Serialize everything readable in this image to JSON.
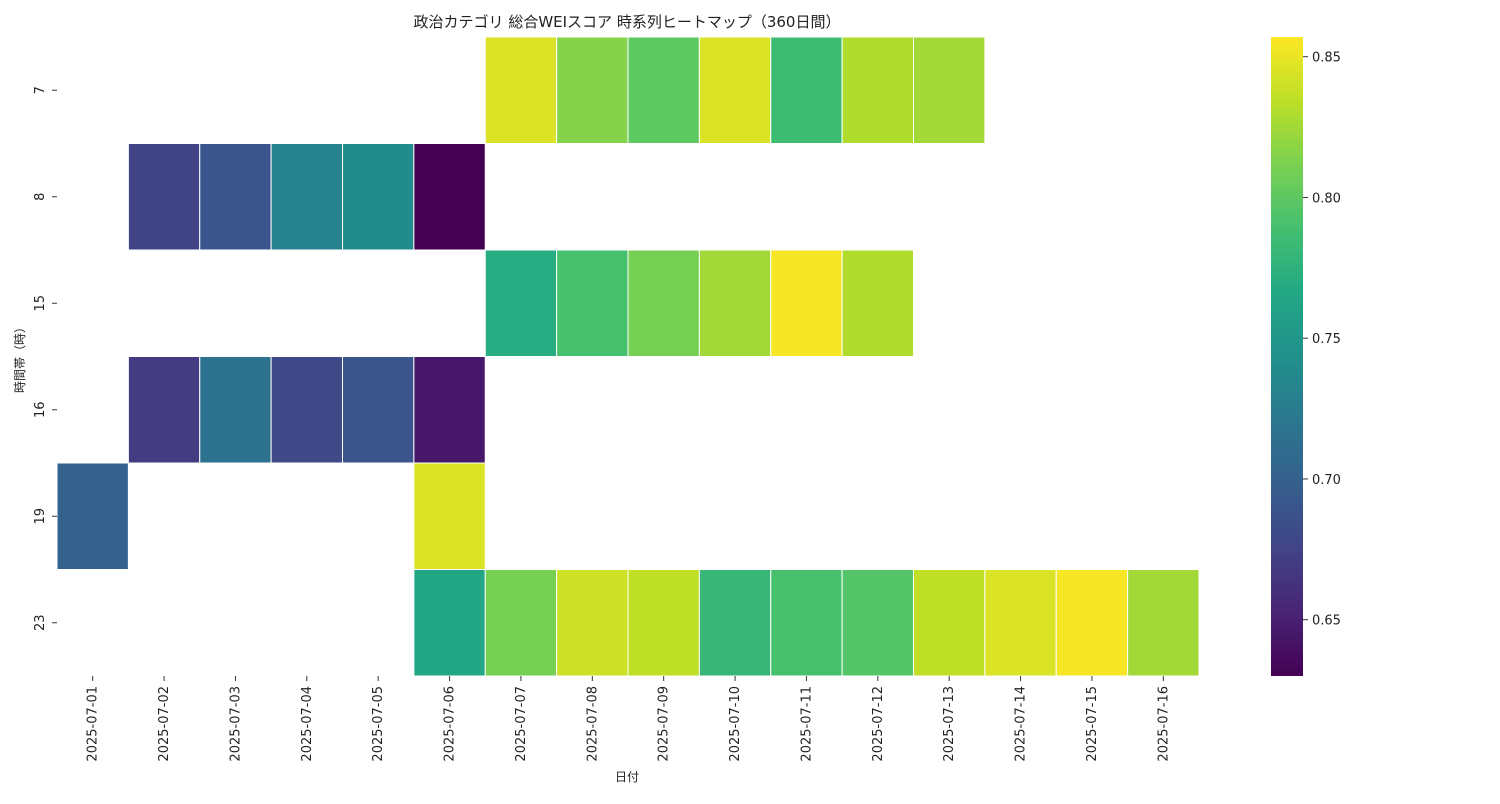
{
  "chart_data": {
    "type": "heatmap",
    "title": "政治カテゴリ 総合WEIスコア 時系列ヒートマップ（360日間）",
    "xlabel": "日付",
    "ylabel": "時間帯（時）",
    "x": [
      "2025-07-01",
      "2025-07-02",
      "2025-07-03",
      "2025-07-04",
      "2025-07-05",
      "2025-07-06",
      "2025-07-07",
      "2025-07-08",
      "2025-07-09",
      "2025-07-10",
      "2025-07-11",
      "2025-07-12",
      "2025-07-13",
      "2025-07-14",
      "2025-07-15",
      "2025-07-16"
    ],
    "y": [
      "7",
      "8",
      "15",
      "16",
      "19",
      "23"
    ],
    "values": [
      [
        null,
        null,
        null,
        null,
        null,
        null,
        0.845,
        0.815,
        0.8,
        0.845,
        0.785,
        0.83,
        0.825,
        null,
        null,
        null
      ],
      [
        null,
        0.675,
        0.69,
        0.73,
        0.74,
        0.63,
        null,
        null,
        null,
        null,
        null,
        null,
        null,
        null,
        null,
        null
      ],
      [
        null,
        null,
        null,
        null,
        null,
        null,
        0.77,
        0.79,
        0.81,
        0.825,
        0.855,
        0.83,
        null,
        null,
        null,
        null
      ],
      [
        null,
        0.67,
        0.715,
        0.68,
        0.69,
        0.645,
        null,
        null,
        null,
        null,
        null,
        null,
        null,
        null,
        null,
        null
      ],
      [
        0.7,
        null,
        null,
        null,
        null,
        0.845,
        null,
        null,
        null,
        null,
        null,
        null,
        null,
        null,
        null,
        null
      ],
      [
        null,
        null,
        null,
        null,
        null,
        0.765,
        0.81,
        0.84,
        0.835,
        0.78,
        0.79,
        0.795,
        0.835,
        0.845,
        0.855,
        0.825
      ]
    ],
    "colorbar": {
      "colormap": "viridis",
      "min": 0.63,
      "max": 0.857,
      "ticks": [
        0.65,
        0.7,
        0.75,
        0.8,
        0.85
      ],
      "tick_labels": [
        "0.65",
        "0.70",
        "0.75",
        "0.80",
        "0.85"
      ]
    },
    "grid": false,
    "cell_border_color": "#ffffff"
  }
}
